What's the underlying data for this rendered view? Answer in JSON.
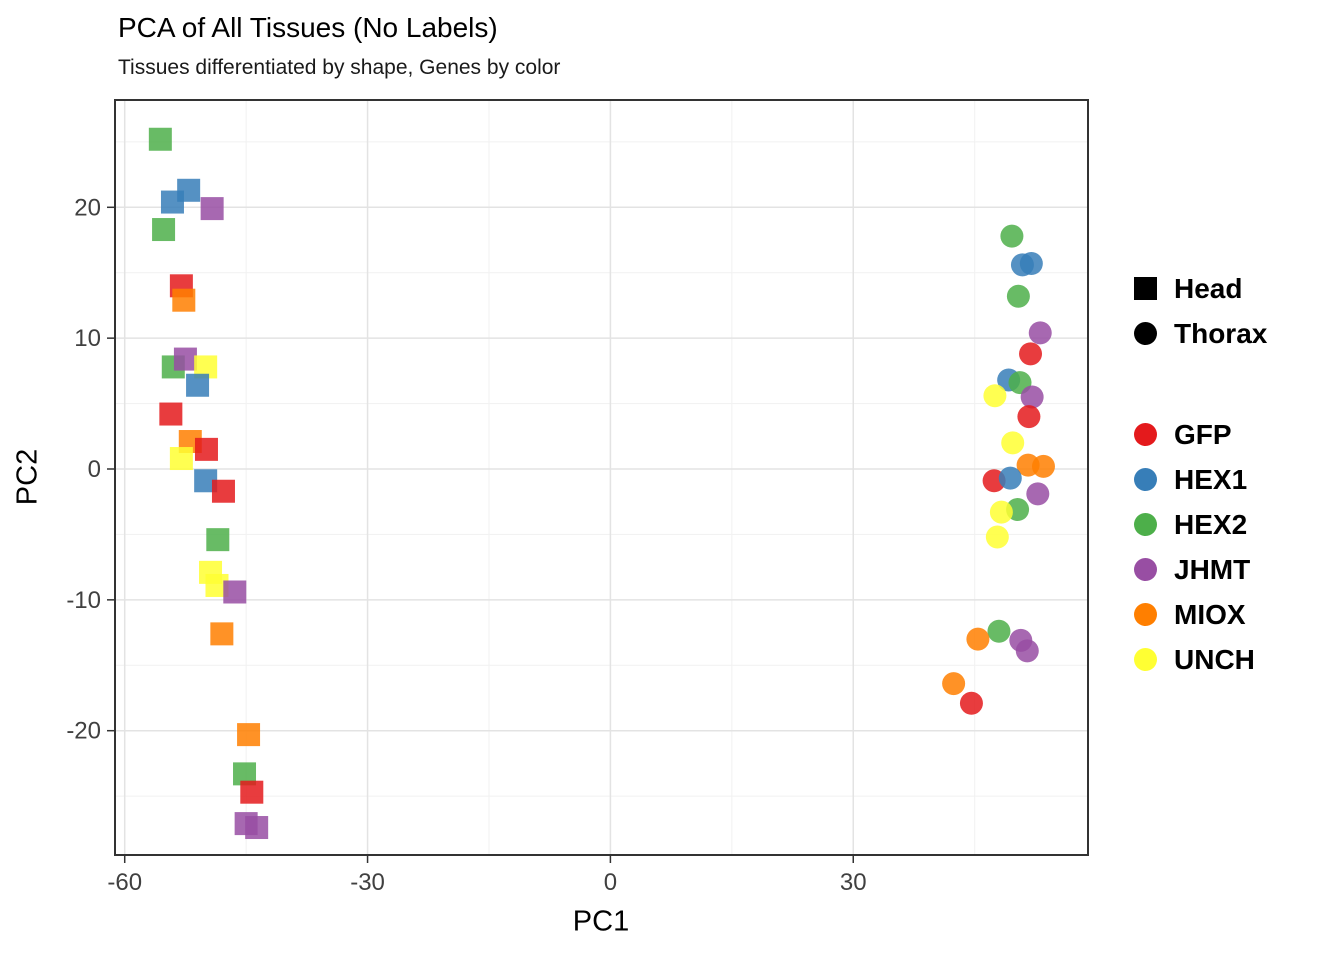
{
  "chart_data": {
    "type": "scatter",
    "title": "PCA of All Tissues (No Labels)",
    "subtitle": "Tissues differentiated by shape, Genes by color",
    "xlabel": "PC1",
    "ylabel": "PC2",
    "xlim": [
      -61.2,
      59.0
    ],
    "ylim": [
      -29.5,
      28.2
    ],
    "x_ticks": [
      -60,
      -30,
      0,
      30
    ],
    "y_ticks": [
      -20,
      -10,
      0,
      10,
      20
    ],
    "grid": "major+minor",
    "legend_position": "right",
    "panel_border_color": "#333333",
    "major_grid_color": "#e3e3e3",
    "minor_grid_color": "#f1f1f1",
    "point_opacity": 0.85,
    "shape_legend": [
      {
        "label": "Head",
        "shape": "square"
      },
      {
        "label": "Thorax",
        "shape": "circle"
      }
    ],
    "color_legend": [
      {
        "label": "GFP",
        "color": "#E41A1C"
      },
      {
        "label": "HEX1",
        "color": "#377EB8"
      },
      {
        "label": "HEX2",
        "color": "#4DAF4A"
      },
      {
        "label": "JHMT",
        "color": "#984EA3"
      },
      {
        "label": "MIOX",
        "color": "#FF7F00"
      },
      {
        "label": "UNCH",
        "color": "#FFFF33"
      }
    ],
    "series": [
      {
        "tissue": "Head",
        "shape": "square",
        "points": [
          {
            "gene": "HEX2",
            "x": -55.6,
            "y": 25.2
          },
          {
            "gene": "HEX1",
            "x": -54.1,
            "y": 20.4
          },
          {
            "gene": "HEX1",
            "x": -52.1,
            "y": 21.3
          },
          {
            "gene": "JHMT",
            "x": -49.2,
            "y": 19.9
          },
          {
            "gene": "HEX2",
            "x": -55.2,
            "y": 18.3
          },
          {
            "gene": "GFP",
            "x": -53.0,
            "y": 14.0
          },
          {
            "gene": "MIOX",
            "x": -52.7,
            "y": 12.9
          },
          {
            "gene": "HEX2",
            "x": -54.0,
            "y": 7.8
          },
          {
            "gene": "JHMT",
            "x": -52.5,
            "y": 8.4
          },
          {
            "gene": "UNCH",
            "x": -50.0,
            "y": 7.8
          },
          {
            "gene": "HEX1",
            "x": -51.0,
            "y": 6.4
          },
          {
            "gene": "GFP",
            "x": -54.3,
            "y": 4.2
          },
          {
            "gene": "MIOX",
            "x": -51.9,
            "y": 2.1
          },
          {
            "gene": "UNCH",
            "x": -53.0,
            "y": 0.8
          },
          {
            "gene": "GFP",
            "x": -49.9,
            "y": 1.5
          },
          {
            "gene": "HEX1",
            "x": -50.0,
            "y": -0.9
          },
          {
            "gene": "GFP",
            "x": -47.8,
            "y": -1.7
          },
          {
            "gene": "HEX2",
            "x": -48.5,
            "y": -5.4
          },
          {
            "gene": "UNCH",
            "x": -49.4,
            "y": -7.9
          },
          {
            "gene": "UNCH",
            "x": -48.6,
            "y": -8.9
          },
          {
            "gene": "JHMT",
            "x": -46.4,
            "y": -9.4
          },
          {
            "gene": "MIOX",
            "x": -48.0,
            "y": -12.6
          },
          {
            "gene": "MIOX",
            "x": -44.7,
            "y": -20.3
          },
          {
            "gene": "HEX2",
            "x": -45.2,
            "y": -23.3
          },
          {
            "gene": "GFP",
            "x": -44.3,
            "y": -24.7
          },
          {
            "gene": "JHMT",
            "x": -45.0,
            "y": -27.1
          },
          {
            "gene": "JHMT",
            "x": -43.7,
            "y": -27.4
          }
        ]
      },
      {
        "tissue": "Thorax",
        "shape": "circle",
        "points": [
          {
            "gene": "HEX2",
            "x": 49.6,
            "y": 17.8
          },
          {
            "gene": "HEX1",
            "x": 50.9,
            "y": 15.6
          },
          {
            "gene": "HEX1",
            "x": 52.0,
            "y": 15.7
          },
          {
            "gene": "HEX2",
            "x": 50.4,
            "y": 13.2
          },
          {
            "gene": "JHMT",
            "x": 53.1,
            "y": 10.4
          },
          {
            "gene": "GFP",
            "x": 51.9,
            "y": 8.8
          },
          {
            "gene": "HEX1",
            "x": 49.2,
            "y": 6.8
          },
          {
            "gene": "HEX2",
            "x": 50.6,
            "y": 6.6
          },
          {
            "gene": "UNCH",
            "x": 47.5,
            "y": 5.6
          },
          {
            "gene": "JHMT",
            "x": 52.1,
            "y": 5.5
          },
          {
            "gene": "GFP",
            "x": 51.7,
            "y": 4.0
          },
          {
            "gene": "UNCH",
            "x": 49.7,
            "y": 2.0
          },
          {
            "gene": "MIOX",
            "x": 51.6,
            "y": 0.3
          },
          {
            "gene": "MIOX",
            "x": 53.5,
            "y": 0.2
          },
          {
            "gene": "GFP",
            "x": 47.4,
            "y": -0.9
          },
          {
            "gene": "HEX1",
            "x": 49.4,
            "y": -0.7
          },
          {
            "gene": "JHMT",
            "x": 52.8,
            "y": -1.9
          },
          {
            "gene": "HEX2",
            "x": 50.3,
            "y": -3.1
          },
          {
            "gene": "UNCH",
            "x": 48.3,
            "y": -3.3
          },
          {
            "gene": "UNCH",
            "x": 47.8,
            "y": -5.2
          },
          {
            "gene": "HEX2",
            "x": 48.0,
            "y": -12.4
          },
          {
            "gene": "MIOX",
            "x": 45.4,
            "y": -13.0
          },
          {
            "gene": "JHMT",
            "x": 50.7,
            "y": -13.1
          },
          {
            "gene": "JHMT",
            "x": 51.5,
            "y": -13.9
          },
          {
            "gene": "MIOX",
            "x": 42.4,
            "y": -16.4
          },
          {
            "gene": "GFP",
            "x": 44.6,
            "y": -17.9
          }
        ]
      }
    ]
  }
}
